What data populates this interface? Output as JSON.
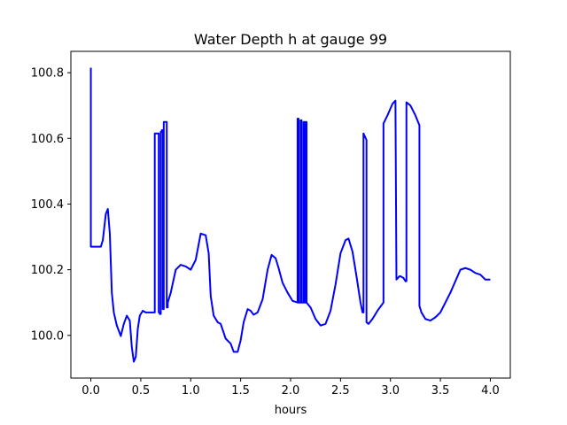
{
  "chart_data": {
    "type": "line",
    "title": "Water Depth h at gauge 99",
    "xlabel": "hours",
    "ylabel": "",
    "xlim": [
      -0.2,
      4.2
    ],
    "ylim": [
      99.87,
      100.865
    ],
    "xticks": [
      0.0,
      0.5,
      1.0,
      1.5,
      2.0,
      2.5,
      3.0,
      3.5,
      4.0
    ],
    "xtick_labels": [
      "0.0",
      "0.5",
      "1.0",
      "1.5",
      "2.0",
      "2.5",
      "3.0",
      "3.5",
      "4.0"
    ],
    "yticks": [
      100.0,
      100.2,
      100.4,
      100.6,
      100.8
    ],
    "ytick_labels": [
      "100.0",
      "100.2",
      "100.4",
      "100.6",
      "100.8"
    ],
    "grid": false,
    "series": [
      {
        "name": "",
        "color": "#0000ff",
        "x": [
          0.0,
          0.0,
          0.0,
          0.05,
          0.1,
          0.12,
          0.15,
          0.17,
          0.19,
          0.21,
          0.23,
          0.26,
          0.3,
          0.33,
          0.36,
          0.39,
          0.41,
          0.43,
          0.45,
          0.47,
          0.49,
          0.52,
          0.55,
          0.58,
          0.62,
          0.64,
          0.64,
          0.64,
          0.68,
          0.68,
          0.69,
          0.69,
          0.7,
          0.7,
          0.71,
          0.71,
          0.72,
          0.72,
          0.73,
          0.73,
          0.76,
          0.76,
          0.77,
          0.77,
          0.8,
          0.85,
          0.9,
          0.95,
          1.0,
          1.05,
          1.1,
          1.15,
          1.18,
          1.2,
          1.23,
          1.27,
          1.3,
          1.35,
          1.4,
          1.43,
          1.47,
          1.5,
          1.53,
          1.57,
          1.6,
          1.63,
          1.67,
          1.72,
          1.77,
          1.81,
          1.85,
          1.88,
          1.92,
          1.97,
          2.02,
          2.07,
          2.07,
          2.08,
          2.08,
          2.1,
          2.1,
          2.11,
          2.11,
          2.13,
          2.13,
          2.14,
          2.14,
          2.15,
          2.15,
          2.16,
          2.16,
          2.2,
          2.25,
          2.3,
          2.35,
          2.4,
          2.45,
          2.5,
          2.55,
          2.58,
          2.62,
          2.66,
          2.7,
          2.72,
          2.73,
          2.73,
          2.76,
          2.76,
          2.78,
          2.82,
          2.87,
          2.93,
          2.93,
          2.97,
          3.02,
          3.05,
          3.05,
          3.06,
          3.09,
          3.1,
          3.13,
          3.15,
          3.16,
          3.16,
          3.2,
          3.25,
          3.29,
          3.29,
          3.31,
          3.35,
          3.4,
          3.45,
          3.5,
          3.55,
          3.6,
          3.65,
          3.7,
          3.75,
          3.8,
          3.85,
          3.9,
          3.95,
          4.0
        ],
        "y": [
          100.815,
          100.815,
          100.27,
          100.27,
          100.27,
          100.29,
          100.37,
          100.385,
          100.31,
          100.13,
          100.07,
          100.03,
          99.998,
          100.035,
          100.06,
          100.045,
          99.965,
          99.92,
          99.935,
          100.02,
          100.06,
          100.075,
          100.07,
          100.07,
          100.07,
          100.07,
          100.615,
          100.615,
          100.615,
          100.07,
          100.07,
          100.065,
          100.065,
          100.62,
          100.62,
          100.625,
          100.625,
          100.08,
          100.08,
          100.65,
          100.65,
          100.085,
          100.085,
          100.1,
          100.13,
          100.2,
          100.215,
          100.21,
          100.2,
          100.23,
          100.31,
          100.305,
          100.25,
          100.12,
          100.06,
          100.04,
          100.035,
          99.99,
          99.975,
          99.95,
          99.95,
          99.985,
          100.04,
          100.08,
          100.075,
          100.063,
          100.07,
          100.11,
          100.2,
          100.245,
          100.235,
          100.205,
          100.16,
          100.13,
          100.105,
          100.1,
          100.66,
          100.66,
          100.1,
          100.1,
          100.655,
          100.655,
          100.1,
          100.1,
          100.65,
          100.65,
          100.1,
          100.1,
          100.65,
          100.65,
          100.1,
          100.085,
          100.05,
          100.03,
          100.035,
          100.075,
          100.155,
          100.25,
          100.29,
          100.295,
          100.255,
          100.18,
          100.1,
          100.07,
          100.07,
          100.615,
          100.595,
          100.04,
          100.035,
          100.05,
          100.075,
          100.1,
          100.645,
          100.67,
          100.705,
          100.715,
          100.715,
          100.17,
          100.18,
          100.18,
          100.175,
          100.165,
          100.165,
          100.71,
          100.7,
          100.67,
          100.64,
          100.09,
          100.07,
          100.05,
          100.045,
          100.055,
          100.07,
          100.1,
          100.13,
          100.165,
          100.2,
          100.205,
          100.2,
          100.19,
          100.185,
          100.17,
          100.17
        ]
      }
    ]
  }
}
